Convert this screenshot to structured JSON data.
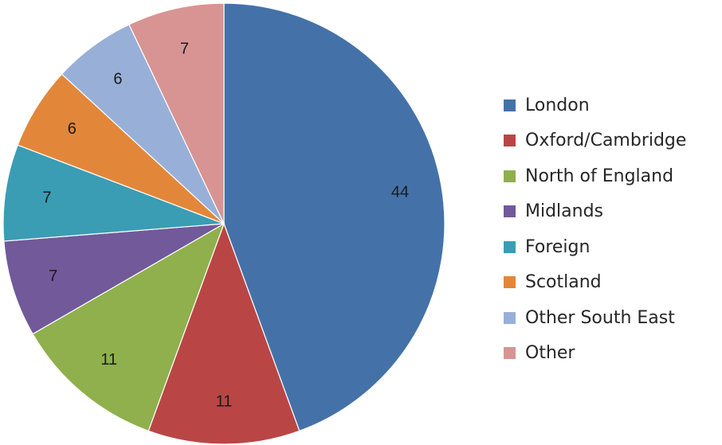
{
  "chart_data": {
    "type": "pie",
    "start_angle_deg": 0,
    "direction": "clockwise",
    "legend_position": "right",
    "slices": [
      {
        "label": "London",
        "value": 44,
        "color": "#4472A8"
      },
      {
        "label": "Oxford/Cambridge",
        "value": 11,
        "color": "#B94645"
      },
      {
        "label": "North of England",
        "value": 11,
        "color": "#8FB04C"
      },
      {
        "label": "Midlands",
        "value": 7,
        "color": "#71599A"
      },
      {
        "label": "Foreign",
        "value": 7,
        "color": "#3A9DB3"
      },
      {
        "label": "Scotland",
        "value": 6,
        "color": "#E2873A"
      },
      {
        "label": "Other South East",
        "value": 6,
        "color": "#98B0D8"
      },
      {
        "label": "Other",
        "value": 7,
        "color": "#D79493"
      }
    ],
    "data_labels": [
      "44",
      "11",
      "11",
      "7",
      "7",
      "6",
      "6",
      "7"
    ]
  }
}
